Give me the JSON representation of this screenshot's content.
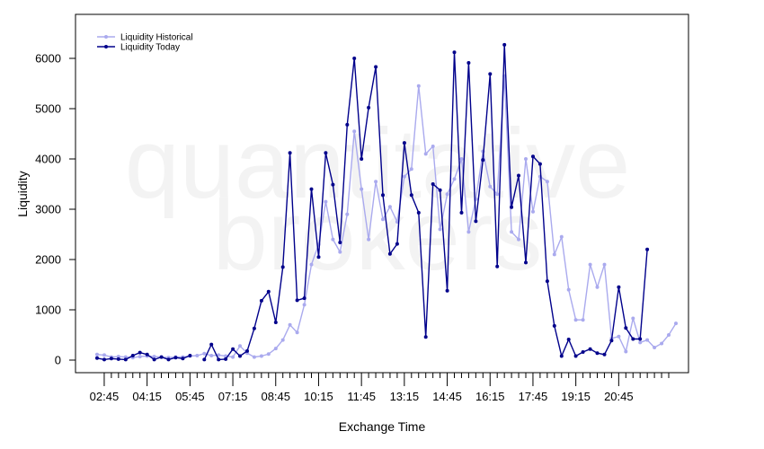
{
  "chart_data": {
    "type": "line",
    "title": "",
    "xlabel": "Exchange Time",
    "ylabel": "Liquidity",
    "watermark": [
      "quantitative",
      "brokers"
    ],
    "ylim": [
      -250,
      6750
    ],
    "yticks": [
      0,
      1000,
      2000,
      3000,
      4000,
      5000,
      6000
    ],
    "x_tick_labels": [
      "02:45",
      "04:15",
      "05:45",
      "07:15",
      "08:45",
      "10:15",
      "11:45",
      "13:15",
      "14:45",
      "16:15",
      "17:45",
      "19:15",
      "20:45"
    ],
    "x_tick_label_indices": [
      1,
      7,
      13,
      19,
      25,
      31,
      37,
      43,
      49,
      55,
      61,
      67,
      73
    ],
    "n_minor_ticks": 80,
    "legend": {
      "position": "top-left"
    },
    "grid": false,
    "series": [
      {
        "name": "Liquidity Historical",
        "color": "#aaaaee",
        "values": [
          110,
          100,
          60,
          70,
          60,
          50,
          70,
          80,
          70,
          60,
          50,
          60,
          60,
          80,
          90,
          130,
          90,
          100,
          80,
          60,
          280,
          140,
          60,
          80,
          120,
          230,
          400,
          700,
          550,
          1100,
          1900,
          2300,
          3150,
          2400,
          2150,
          2900,
          4550,
          3400,
          2400,
          3550,
          2800,
          3050,
          2750,
          3650,
          3800,
          5450,
          4100,
          4250,
          2600,
          3300,
          3600,
          4000,
          2550,
          3200,
          4150,
          3450,
          3300,
          5650,
          2550,
          2400,
          4000,
          2950,
          3650,
          3550,
          2100,
          2450,
          1400,
          800,
          800,
          1900,
          1450,
          1900,
          430,
          470,
          170,
          830,
          350,
          400,
          250,
          330,
          500,
          730
        ]
      },
      {
        "name": "Liquidity Today",
        "color": "#00008b",
        "values": [
          40,
          10,
          30,
          20,
          10,
          90,
          150,
          110,
          10,
          60,
          10,
          50,
          30,
          90,
          null,
          10,
          310,
          10,
          20,
          220,
          80,
          180,
          630,
          1180,
          1360,
          750,
          1850,
          4120,
          1190,
          1230,
          3400,
          2050,
          4120,
          3490,
          2340,
          4680,
          6000,
          4000,
          5020,
          5830,
          3280,
          2110,
          2310,
          4320,
          3280,
          2930,
          460,
          3500,
          3380,
          1380,
          6120,
          2930,
          5910,
          2760,
          3980,
          5690,
          1860,
          6270,
          3040,
          3670,
          1940,
          4050,
          3900,
          1570,
          680,
          80,
          410,
          80,
          160,
          220,
          140,
          110,
          390,
          1450,
          640,
          420,
          420,
          2200
        ]
      }
    ]
  }
}
